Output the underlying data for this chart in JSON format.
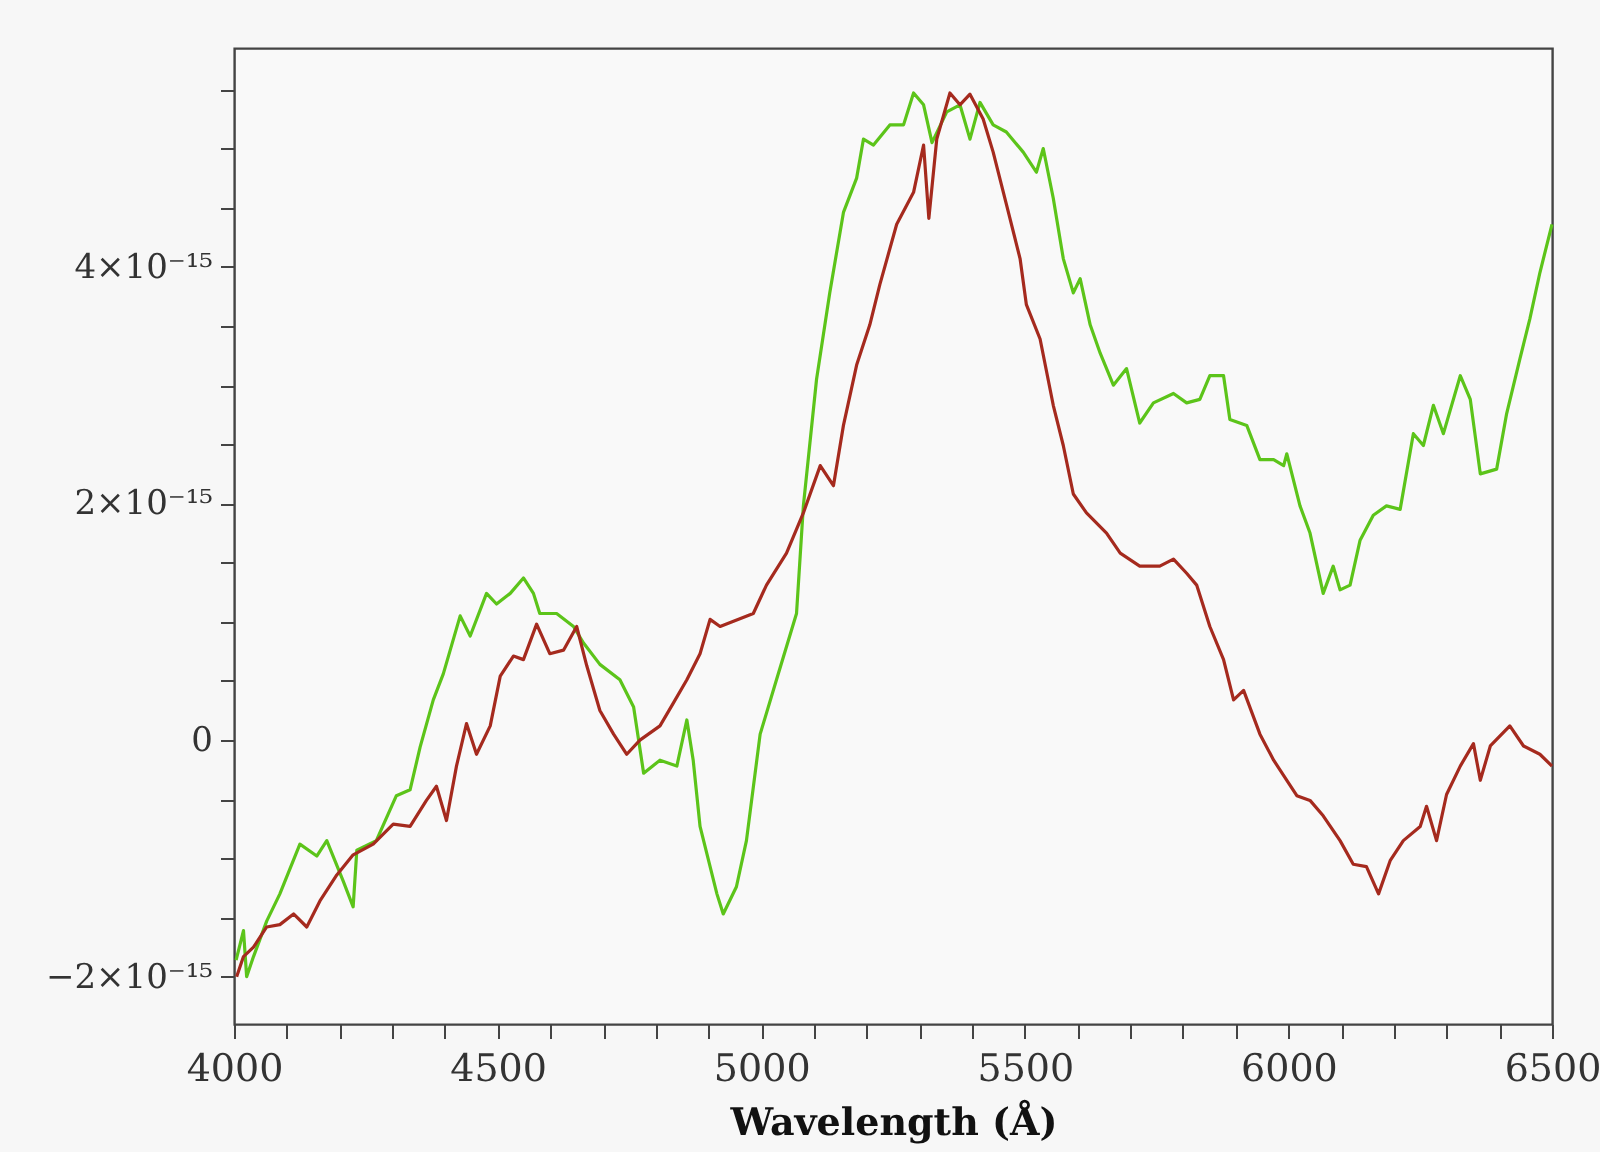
{
  "chart_data": {
    "type": "line",
    "xlabel": "Wavelength (Å)",
    "xlim": [
      4000,
      6500
    ],
    "ylim": [
      -2.4e-15,
      5.85e-15
    ],
    "xticks": [
      4000,
      {
        "value": 4100,
        "label": null
      },
      {
        "value": 4200,
        "label": null
      },
      {
        "value": 4300,
        "label": null
      },
      {
        "value": 4400,
        "label": null
      },
      4500,
      {
        "value": 4600,
        "label": null
      },
      {
        "value": 4700,
        "label": null
      },
      {
        "value": 4800,
        "label": null
      },
      {
        "value": 4900,
        "label": null
      },
      5000,
      {
        "value": 5100,
        "label": null
      },
      {
        "value": 5200,
        "label": null
      },
      {
        "value": 5300,
        "label": null
      },
      {
        "value": 5400,
        "label": null
      },
      5500,
      {
        "value": 5600,
        "label": null
      },
      {
        "value": 5700,
        "label": null
      },
      {
        "value": 5800,
        "label": null
      },
      {
        "value": 5900,
        "label": null
      },
      6000,
      {
        "value": 6100,
        "label": null
      },
      {
        "value": 6200,
        "label": null
      },
      {
        "value": 6300,
        "label": null
      },
      {
        "value": 6400,
        "label": null
      },
      6500
    ],
    "yticks": [
      {
        "value": -2e-15,
        "label": "−2×10⁻¹⁵"
      },
      {
        "value": -1.5e-15,
        "label": null
      },
      {
        "value": -1e-15,
        "label": null
      },
      {
        "value": -5e-16,
        "label": null
      },
      0,
      {
        "value": 5e-16,
        "label": null
      },
      {
        "value": 1e-15,
        "label": null
      },
      {
        "value": 1.5e-15,
        "label": null
      },
      {
        "value": 2e-15,
        "label": "2×10⁻¹⁵"
      },
      {
        "value": 2.5e-15,
        "label": null
      },
      {
        "value": 3e-15,
        "label": null
      },
      {
        "value": 3.5e-15,
        "label": null
      },
      {
        "value": 4e-15,
        "label": "4×10⁻¹⁵"
      },
      {
        "value": 4.5e-15,
        "label": null
      },
      {
        "value": 5e-15,
        "label": null
      },
      {
        "value": 5.5e-15,
        "label": null
      }
    ],
    "grid": false,
    "marker": "none",
    "line_style": "solid",
    "series": [
      {
        "color": "#5cc41a",
        "x": [
          4004,
          4018,
          4024,
          4037,
          4062,
          4087,
          4125,
          4157,
          4176,
          4207,
          4226,
          4233,
          4270,
          4308,
          4334,
          4353,
          4378,
          4397,
          4429,
          4448,
          4479,
          4498,
          4524,
          4549,
          4568,
          4580,
          4612,
          4644,
          4663,
          4694,
          4732,
          4758,
          4777,
          4808,
          4840,
          4859,
          4871,
          4884,
          4916,
          4928,
          4953,
          4972,
          4998,
          5029,
          5067,
          5080,
          5105,
          5130,
          5156,
          5181,
          5194,
          5213,
          5244,
          5270,
          5289,
          5308,
          5324,
          5352,
          5377,
          5396,
          5415,
          5440,
          5465,
          5497,
          5522,
          5535,
          5554,
          5573,
          5592,
          5605,
          5624,
          5643,
          5668,
          5693,
          5718,
          5744,
          5782,
          5807,
          5832,
          5851,
          5877,
          5889,
          5921,
          5946,
          5972,
          5991,
          5997,
          6022,
          6041,
          6066,
          6085,
          6098,
          6117,
          6136,
          6161,
          6186,
          6212,
          6237,
          6256,
          6275,
          6294,
          6326,
          6345,
          6364,
          6395,
          6414,
          6439,
          6458,
          6477,
          6500
        ],
        "values": [
          -1.86e-15,
          -1.61e-15,
          -2e-15,
          -1.83e-15,
          -1.53e-15,
          -1.3e-15,
          -8.8e-16,
          -9.8e-16,
          -8.5e-16,
          -1.19e-15,
          -1.41e-15,
          -9.3e-16,
          -8.5e-16,
          -4.7e-16,
          -4.2e-16,
          -6e-17,
          3.4e-16,
          5.6e-16,
          1.05e-15,
          8.8e-16,
          1.24e-15,
          1.15e-15,
          1.24e-15,
          1.37e-15,
          1.24e-15,
          1.07e-15,
          1.07e-15,
          9.6e-16,
          8.2e-16,
          6.4e-16,
          5.1e-16,
          2.8e-16,
          -2.8e-16,
          -1.7e-16,
          -2.2e-16,
          1.7e-16,
          -1.7e-16,
          -7.3e-16,
          -1.3e-15,
          -1.47e-15,
          -1.24e-15,
          -8.5e-16,
          5e-17,
          5.1e-16,
          1.07e-15,
          1.98e-15,
          3.05e-15,
          3.78e-15,
          4.46e-15,
          4.75e-15,
          5.08e-15,
          5.03e-15,
          5.2e-15,
          5.2e-15,
          5.47e-15,
          5.37e-15,
          5.05e-15,
          5.31e-15,
          5.37e-15,
          5.08e-15,
          5.39e-15,
          5.2e-15,
          5.14e-15,
          4.97e-15,
          4.8e-15,
          5e-15,
          4.58e-15,
          4.07e-15,
          3.78e-15,
          3.9e-15,
          3.51e-15,
          3.27e-15,
          3e-15,
          3.14e-15,
          2.68e-15,
          2.85e-15,
          2.93e-15,
          2.85e-15,
          2.88e-15,
          3.08e-15,
          3.08e-15,
          2.71e-15,
          2.66e-15,
          2.37e-15,
          2.37e-15,
          2.32e-15,
          2.42e-15,
          1.98e-15,
          1.75e-15,
          1.24e-15,
          1.47e-15,
          1.27e-15,
          1.31e-15,
          1.69e-15,
          1.9e-15,
          1.98e-15,
          1.95e-15,
          2.59e-15,
          2.49e-15,
          2.83e-15,
          2.59e-15,
          3.08e-15,
          2.88e-15,
          2.25e-15,
          2.29e-15,
          2.76e-15,
          3.22e-15,
          3.56e-15,
          3.95e-15,
          4.36e-15
        ]
      },
      {
        "color": "#a52a1e",
        "x": [
          4005,
          4018,
          4037,
          4062,
          4087,
          4113,
          4138,
          4163,
          4195,
          4226,
          4264,
          4302,
          4334,
          4365,
          4384,
          4403,
          4422,
          4441,
          4460,
          4486,
          4505,
          4530,
          4549,
          4574,
          4599,
          4625,
          4650,
          4669,
          4694,
          4720,
          4745,
          4770,
          4808,
          4833,
          4859,
          4884,
          4903,
          4922,
          4985,
          5010,
          5048,
          5080,
          5112,
          5137,
          5156,
          5181,
          5206,
          5225,
          5257,
          5289,
          5308,
          5318,
          5333,
          5358,
          5377,
          5396,
          5421,
          5440,
          5465,
          5491,
          5503,
          5529,
          5554,
          5573,
          5592,
          5617,
          5655,
          5681,
          5718,
          5756,
          5782,
          5807,
          5826,
          5851,
          5877,
          5896,
          5915,
          5946,
          5972,
          5997,
          6016,
          6041,
          6066,
          6098,
          6123,
          6148,
          6171,
          6193,
          6218,
          6250,
          6262,
          6281,
          6300,
          6326,
          6351,
          6364,
          6383,
          6420,
          6446,
          6477,
          6500
        ],
        "values": [
          -2e-15,
          -1.83e-15,
          -1.75e-15,
          -1.58e-15,
          -1.56e-15,
          -1.47e-15,
          -1.58e-15,
          -1.36e-15,
          -1.14e-15,
          -9.7e-16,
          -8.8e-16,
          -7.1e-16,
          -7.3e-16,
          -5.1e-16,
          -3.9e-16,
          -6.8e-16,
          -2.2e-16,
          1.4e-16,
          -1.2e-16,
          1.2e-16,
          5.4e-16,
          7.1e-16,
          6.8e-16,
          9.8e-16,
          7.3e-16,
          7.6e-16,
          9.6e-16,
          6.3e-16,
          2.5e-16,
          5e-17,
          -1.2e-16,
          0.0,
          1.2e-16,
          3.1e-16,
          5.1e-16,
          7.3e-16,
          1.02e-15,
          9.6e-16,
          1.07e-15,
          1.31e-15,
          1.58e-15,
          1.92e-15,
          2.32e-15,
          2.15e-15,
          2.66e-15,
          3.17e-15,
          3.51e-15,
          3.85e-15,
          4.36e-15,
          4.63e-15,
          5.03e-15,
          4.41e-15,
          5.08e-15,
          5.47e-15,
          5.37e-15,
          5.46e-15,
          5.25e-15,
          4.97e-15,
          4.53e-15,
          4.07e-15,
          3.68e-15,
          3.39e-15,
          2.83e-15,
          2.49e-15,
          2.08e-15,
          1.92e-15,
          1.75e-15,
          1.58e-15,
          1.47e-15,
          1.47e-15,
          1.53e-15,
          1.41e-15,
          1.31e-15,
          9.6e-16,
          6.8e-16,
          3.4e-16,
          4.2e-16,
          5e-17,
          -1.7e-16,
          -3.4e-16,
          -4.7e-16,
          -5.1e-16,
          -6.4e-16,
          -8.5e-16,
          -1.05e-15,
          -1.07e-15,
          -1.3e-15,
          -1.02e-15,
          -8.5e-16,
          -7.3e-16,
          -5.6e-16,
          -8.5e-16,
          -4.6e-16,
          -2.2e-16,
          -3e-17,
          -3.4e-16,
          -5e-17,
          1.2e-16,
          -5e-17,
          -1.2e-16,
          -2.2e-16
        ]
      }
    ]
  }
}
